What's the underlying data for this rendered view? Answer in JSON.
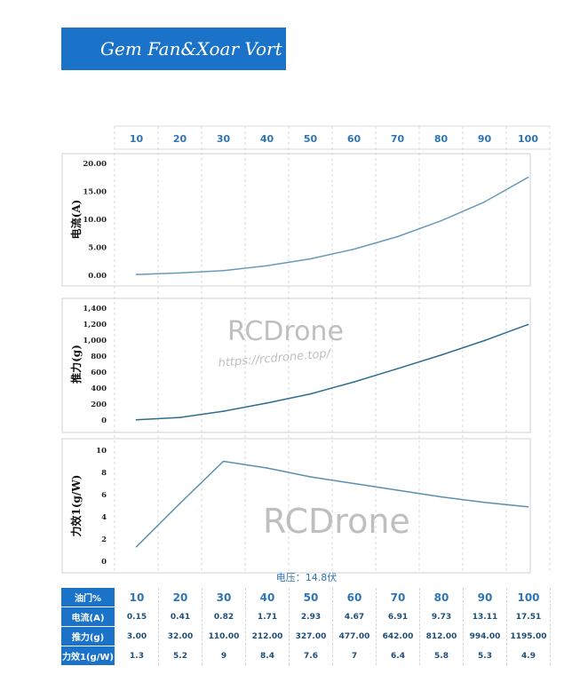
{
  "title": "Gem Fan&Xoar Vort",
  "voltage_label": "电压：14.8伏",
  "watermarks": {
    "brand": "RCDrone",
    "url": "https://rcdrone.top/"
  },
  "table": {
    "row_labels": [
      "油门%",
      "电流(A)",
      "推力(g)",
      "力效1(g/W)"
    ],
    "throttle": [
      "10",
      "20",
      "30",
      "40",
      "50",
      "60",
      "70",
      "80",
      "90",
      "100"
    ],
    "current": [
      "0.15",
      "0.41",
      "0.82",
      "1.71",
      "2.93",
      "4.67",
      "6.91",
      "9.73",
      "13.11",
      "17.51"
    ],
    "thrust": [
      "3.00",
      "32.00",
      "110.00",
      "212.00",
      "327.00",
      "477.00",
      "642.00",
      "812.00",
      "994.00",
      "1195.00"
    ],
    "efficiency": [
      "1.3",
      "5.2",
      "9",
      "8.4",
      "7.6",
      "7",
      "6.4",
      "5.8",
      "5.3",
      "4.9"
    ]
  },
  "chart_data": [
    {
      "type": "line",
      "ylabel": "电流(A)",
      "x": [
        10,
        20,
        30,
        40,
        50,
        60,
        70,
        80,
        90,
        100
      ],
      "y": [
        0.15,
        0.41,
        0.82,
        1.71,
        2.93,
        4.67,
        6.91,
        9.73,
        13.11,
        17.51
      ],
      "ylim": [
        0,
        20
      ],
      "yticks": [
        "0.00",
        "5.00",
        "10.00",
        "15.00",
        "20.00"
      ],
      "color": "#6a9ab8"
    },
    {
      "type": "line",
      "ylabel": "推力(g)",
      "x": [
        10,
        20,
        30,
        40,
        50,
        60,
        70,
        80,
        90,
        100
      ],
      "y": [
        3,
        32,
        110,
        212,
        327,
        477,
        642,
        812,
        994,
        1195
      ],
      "ylim": [
        0,
        1400
      ],
      "yticks": [
        "0",
        "200",
        "400",
        "600",
        "800",
        "1,000",
        "1,200",
        "1,400"
      ],
      "color": "#2e6d8e"
    },
    {
      "type": "line",
      "ylabel": "力效1(g/W)",
      "x": [
        10,
        20,
        30,
        40,
        50,
        60,
        70,
        80,
        90,
        100
      ],
      "y": [
        1.3,
        5.2,
        9,
        8.4,
        7.6,
        7,
        6.4,
        5.8,
        5.3,
        4.9
      ],
      "ylim": [
        0,
        10
      ],
      "yticks": [
        "0",
        "2",
        "4",
        "6",
        "8",
        "10"
      ],
      "color": "#5a8fae"
    }
  ]
}
